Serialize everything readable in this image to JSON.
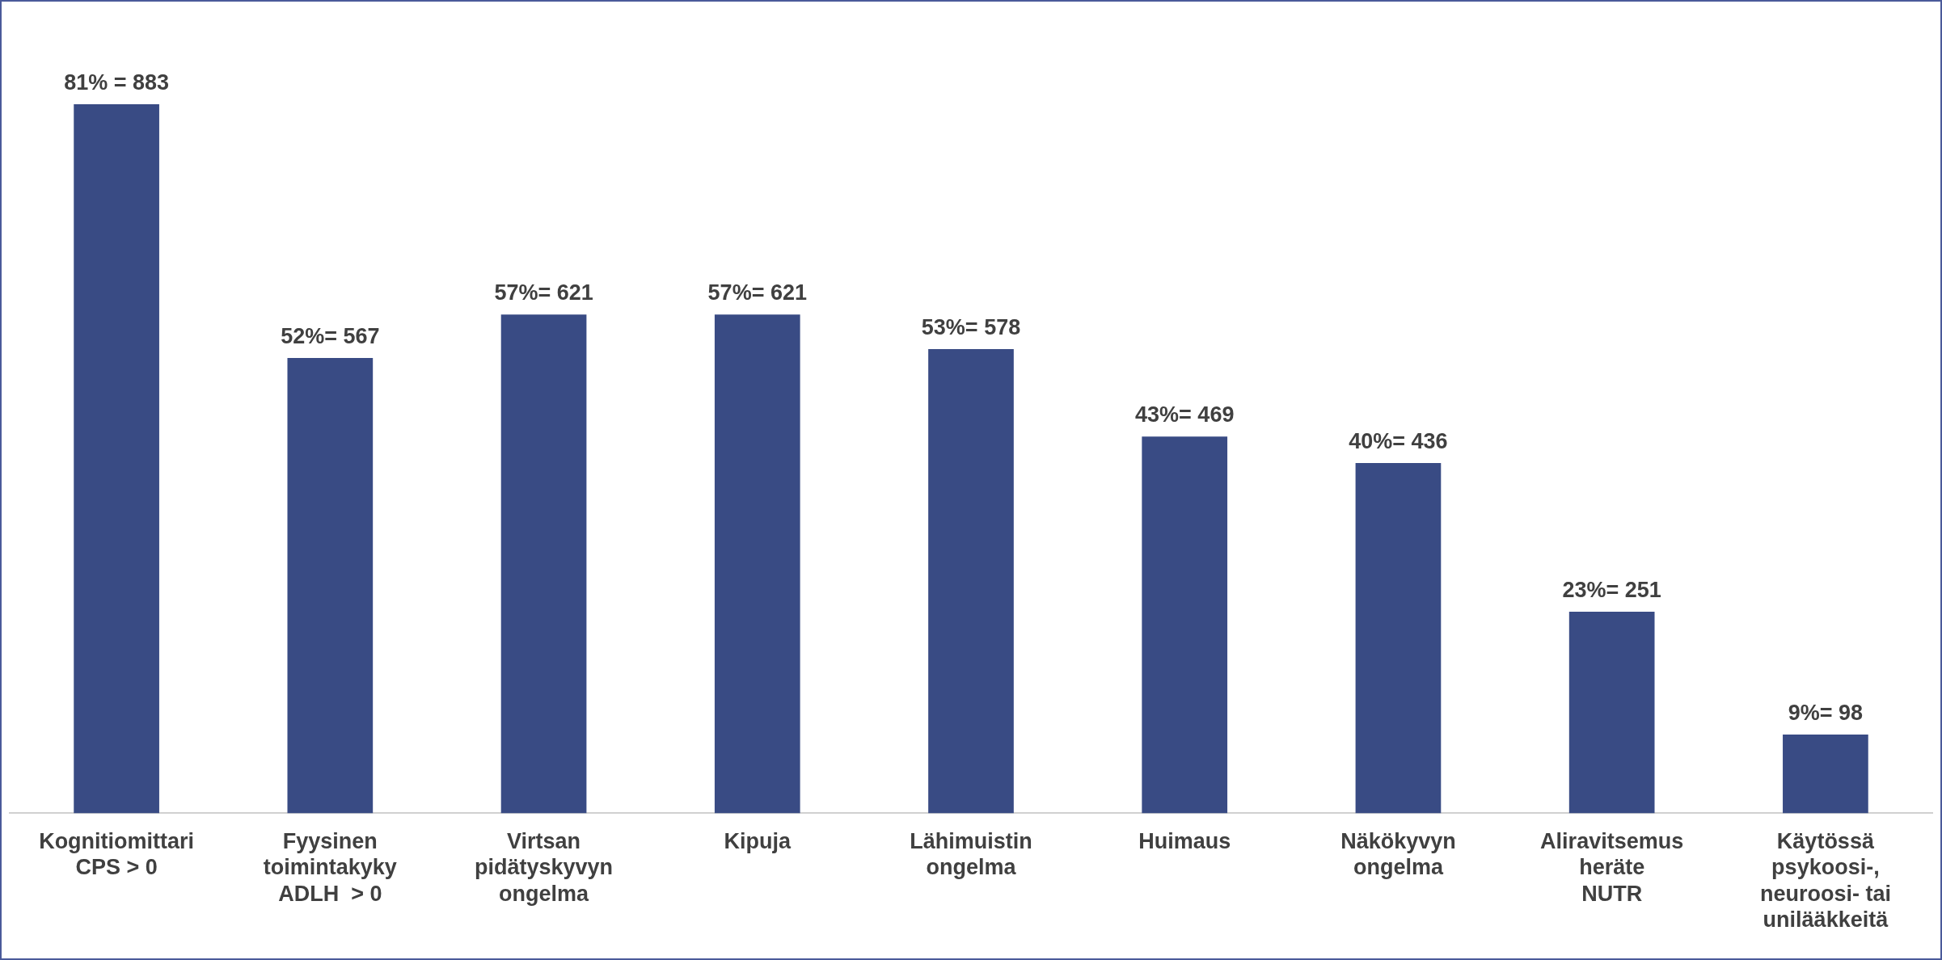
{
  "chart_data": {
    "type": "bar",
    "categories": [
      "Kognitiomittari\nCPS > 0",
      "Fyysinen\ntoimintakyky\nADLH  > 0",
      "Virtsan\npidätyskyvyn\nongelma",
      "Kipuja",
      "Lähimuistin\nongelma",
      "Huimaus",
      "Näkökyvyn\nongelma",
      "Aliravitsemus\nheräte\nNUTR",
      "Käytössä\npsykoosi-,\nneuroosi- tai\nunilääkkeitä"
    ],
    "values": [
      883,
      567,
      621,
      621,
      578,
      469,
      436,
      251,
      98
    ],
    "value_labels": [
      "81% = 883",
      "52%= 567",
      "57%= 621",
      "57%= 621",
      "53%= 578",
      "43%= 469",
      "40%= 436",
      "23%= 251",
      "9%= 98"
    ],
    "color": "#394b84",
    "grid": false,
    "legend": false
  }
}
